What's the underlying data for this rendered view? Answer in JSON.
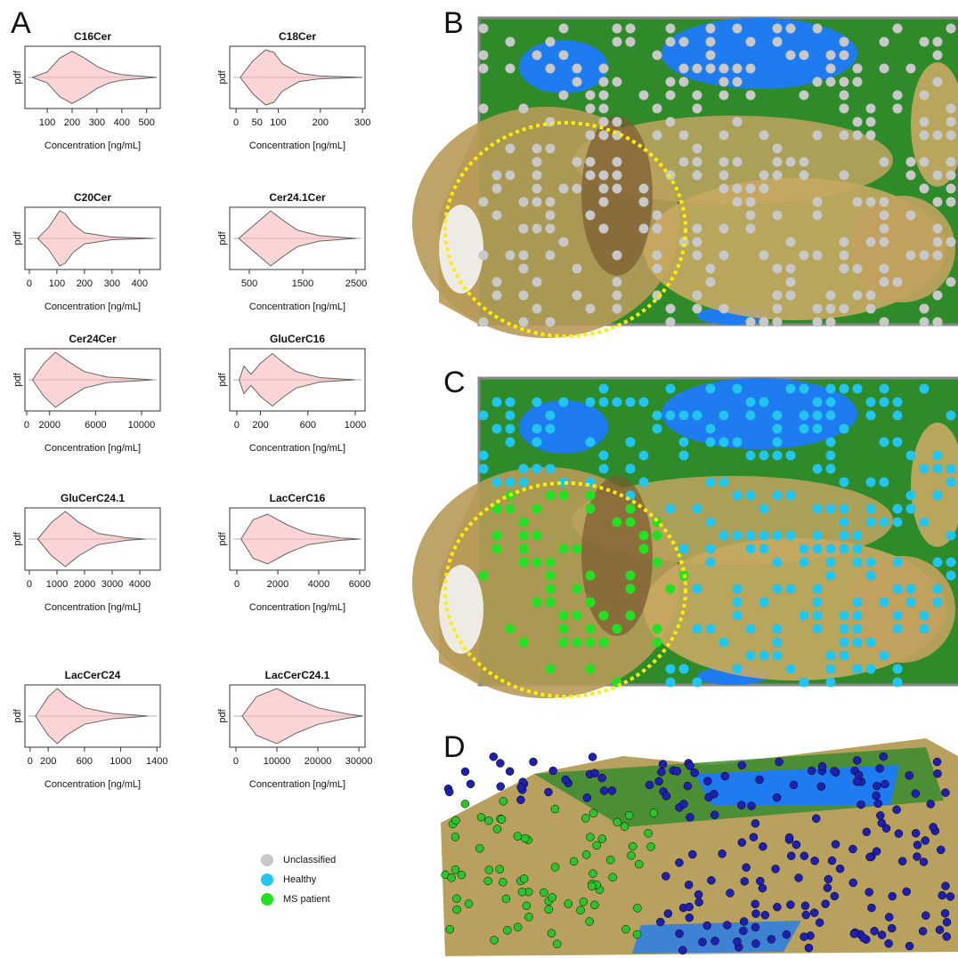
{
  "panel_labels": [
    "A",
    "B",
    "C",
    "D"
  ],
  "chart_data": [
    {
      "type": "violin",
      "title": "C16Cer",
      "x_label": "Concentration [ng/mL]",
      "y_label": "pdf",
      "xlim": [
        10,
        555
      ],
      "xticks": [
        100,
        200,
        300,
        400,
        500
      ],
      "x": [
        40,
        100,
        150,
        200,
        250,
        300,
        350,
        400,
        500,
        540
      ],
      "values": [
        0,
        0.2,
        0.7,
        0.95,
        0.7,
        0.4,
        0.2,
        0.1,
        0.03,
        0
      ],
      "color": "#f7b3b3"
    },
    {
      "type": "violin",
      "title": "C18Cer",
      "x_label": "Concentration [ng/mL]",
      "y_label": "pdf",
      "xlim": [
        -15,
        306
      ],
      "xticks": [
        0,
        50,
        100,
        200,
        300
      ],
      "x": [
        10,
        40,
        70,
        90,
        110,
        150,
        200,
        300
      ],
      "values": [
        0,
        0.6,
        1,
        0.9,
        0.5,
        0.15,
        0.05,
        0
      ],
      "color": "#f7b3b3"
    },
    {
      "type": "violin",
      "title": "C20Cer",
      "x_label": "Concentration [ng/mL]",
      "y_label": "pdf",
      "xlim": [
        -16,
        475
      ],
      "xticks": [
        0,
        100,
        200,
        300,
        400
      ],
      "x": [
        30,
        70,
        110,
        130,
        160,
        200,
        300,
        450
      ],
      "values": [
        0,
        0.4,
        1,
        0.9,
        0.5,
        0.2,
        0.05,
        0
      ],
      "color": "#f7b3b3"
    },
    {
      "type": "violin",
      "title": "Cer24.1Cer",
      "x_label": "Concentration [ng/mL]",
      "y_label": "pdf",
      "xlim": [
        133,
        2667
      ],
      "xticks": [
        500,
        1500,
        2500
      ],
      "x": [
        300,
        600,
        900,
        1100,
        1400,
        1800,
        2500
      ],
      "values": [
        0,
        0.5,
        1,
        0.7,
        0.3,
        0.1,
        0
      ],
      "color": "#f7b3b3"
    },
    {
      "type": "violin",
      "title": "Cer24Cer",
      "x_label": "Concentration [ng/mL]",
      "y_label": "pdf",
      "xlim": [
        -155,
        11630
      ],
      "xticks": [
        0,
        2000,
        6000,
        10000
      ],
      "x": [
        500,
        1500,
        2500,
        3500,
        5000,
        7000,
        10000,
        11000
      ],
      "values": [
        0,
        0.6,
        1,
        0.7,
        0.3,
        0.1,
        0.03,
        0
      ],
      "color": "#f7b3b3"
    },
    {
      "type": "violin",
      "title": "GluCerC16",
      "x_label": "Concentration [ng/mL]",
      "y_label": "pdf",
      "xlim": [
        -60,
        1083
      ],
      "xticks": [
        0,
        200,
        600,
        1000
      ],
      "x": [
        20,
        60,
        120,
        200,
        300,
        400,
        500,
        700,
        1000
      ],
      "values": [
        0,
        0.5,
        0.2,
        0.6,
        0.95,
        0.6,
        0.3,
        0.08,
        0
      ],
      "color": "#f7b3b3"
    },
    {
      "type": "violin",
      "title": "GluCerC24.1",
      "x_label": "Concentration [ng/mL]",
      "y_label": "pdf",
      "xlim": [
        -160,
        4740
      ],
      "xticks": [
        0,
        1000,
        2000,
        3000,
        4000
      ],
      "x": [
        300,
        800,
        1300,
        1800,
        2500,
        3500,
        4200
      ],
      "values": [
        0,
        0.6,
        1,
        0.6,
        0.2,
        0.05,
        0
      ],
      "color": "#f7b3b3"
    },
    {
      "type": "violin",
      "title": "LacCerC16",
      "x_label": "Concentration [ng/mL]",
      "y_label": "pdf",
      "xlim": [
        -350,
        6260
      ],
      "xticks": [
        0,
        2000,
        4000,
        6000
      ],
      "x": [
        200,
        800,
        1500,
        2500,
        3500,
        5000,
        6000
      ],
      "values": [
        0,
        0.7,
        0.9,
        0.5,
        0.2,
        0.05,
        0
      ],
      "color": "#f7b3b3"
    },
    {
      "type": "violin",
      "title": "LacCerC24",
      "x_label": "Concentration [ng/mL]",
      "y_label": "pdf",
      "xlim": [
        -57,
        1437
      ],
      "xticks": [
        0,
        200,
        600,
        1000,
        1400
      ],
      "x": [
        60,
        200,
        300,
        400,
        600,
        900,
        1300
      ],
      "values": [
        0,
        0.7,
        1,
        0.7,
        0.3,
        0.1,
        0
      ],
      "color": "#f7b3b3"
    },
    {
      "type": "violin",
      "title": "LacCerC24.1",
      "x_label": "Concentration [ng/mL]",
      "y_label": "pdf",
      "xlim": [
        -1520,
        31500
      ],
      "xticks": [
        0,
        10000,
        20000,
        30000
      ],
      "x": [
        1500,
        5000,
        10000,
        15000,
        20000,
        27000,
        31000
      ],
      "values": [
        0,
        0.7,
        1,
        0.6,
        0.3,
        0.08,
        0
      ],
      "color": "#f7b3b3"
    }
  ],
  "legend": {
    "entries": [
      {
        "label": "Unclassified",
        "color": "#c8c8c8"
      },
      {
        "label": "Healthy",
        "color": "#22c4f0"
      },
      {
        "label": "MS patient",
        "color": "#22e022"
      }
    ]
  }
}
